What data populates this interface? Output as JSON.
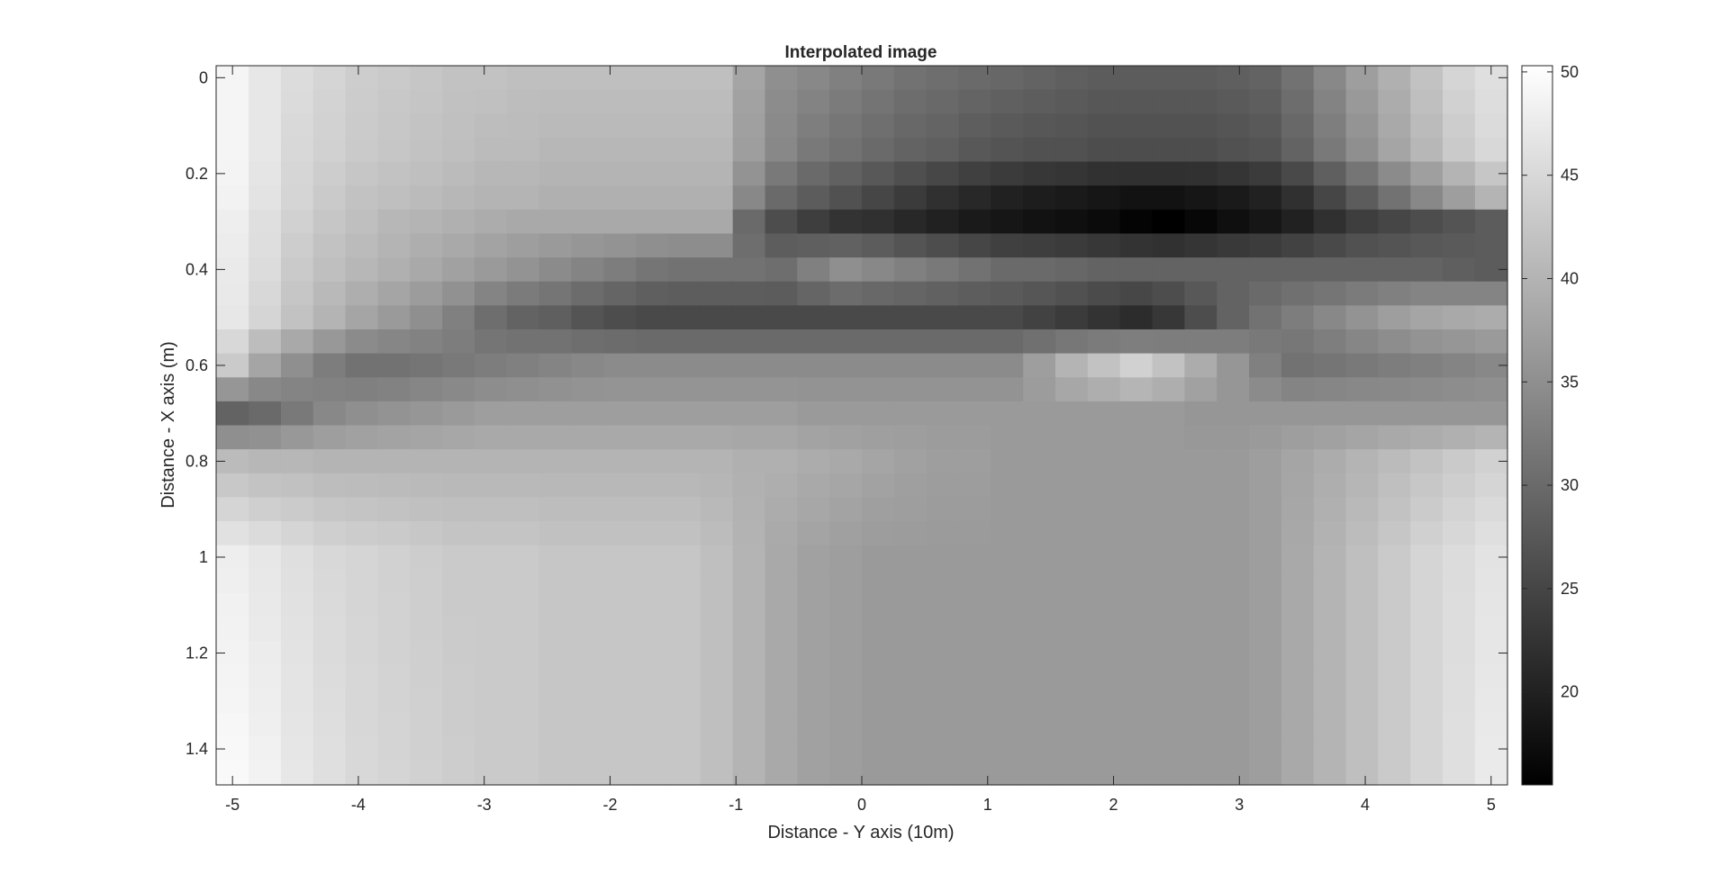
{
  "chart_data": {
    "type": "heatmap",
    "title": "Interpolated image",
    "xlabel": "Distance - Y axis (10m)",
    "ylabel": "Distance - X axis (m)",
    "xlim": [
      -5.13,
      5.13
    ],
    "ylim": [
      -0.025,
      1.475
    ],
    "x_ticks": [
      -5,
      -4,
      -3,
      -2,
      -1,
      0,
      1,
      2,
      3,
      4,
      5
    ],
    "x_tick_labels": [
      "-5",
      "-4",
      "-3",
      "-2",
      "-1",
      "0",
      "1",
      "2",
      "3",
      "4",
      "5"
    ],
    "y_ticks": [
      0,
      0.2,
      0.4,
      0.6,
      0.8,
      1,
      1.2,
      1.4
    ],
    "y_tick_labels": [
      "0",
      "0.2",
      "0.4",
      "0.6",
      "0.8",
      "1",
      "1.2",
      "1.4"
    ],
    "y_direction": "reversed",
    "colormap": "gray",
    "clim": [
      15.5,
      50.3
    ],
    "colorbar": {
      "position": "right",
      "ticks": [
        20,
        25,
        30,
        35,
        40,
        45,
        50
      ],
      "tick_labels": [
        "20",
        "25",
        "30",
        "35",
        "40",
        "45",
        "50"
      ]
    },
    "grid": false,
    "x_centers": [
      -5,
      -4.743,
      -4.487,
      -4.231,
      -3.974,
      -3.718,
      -3.462,
      -3.205,
      -2.949,
      -2.692,
      -2.436,
      -2.179,
      -1.923,
      -1.667,
      -1.41,
      -1.154,
      -0.897,
      -0.641,
      -0.385,
      -0.128,
      0.128,
      0.385,
      0.641,
      0.897,
      1.154,
      1.41,
      1.667,
      1.923,
      2.179,
      2.436,
      2.692,
      2.949,
      3.205,
      3.462,
      3.718,
      3.974,
      4.231,
      4.487,
      4.743,
      5
    ],
    "y_centers": [
      0,
      0.05,
      0.1,
      0.15,
      0.2,
      0.25,
      0.3,
      0.35,
      0.4,
      0.45,
      0.5,
      0.55,
      0.6,
      0.65,
      0.7,
      0.75,
      0.8,
      0.85,
      0.9,
      0.95,
      1,
      1.05,
      1.1,
      1.15,
      1.2,
      1.25,
      1.3,
      1.35,
      1.4,
      1.45
    ],
    "anchor_rows": [
      {
        "y": 0.0,
        "values": [
          49,
          47,
          45.5,
          44.5,
          43.5,
          43,
          42.5,
          42,
          42,
          41.5,
          41.5,
          41.5,
          41.5,
          41.5,
          41.5,
          41.5,
          38,
          35,
          34,
          33,
          32,
          31,
          30.5,
          30,
          29.5,
          29,
          28.5,
          28,
          28,
          28,
          28,
          28.5,
          29,
          31,
          34,
          37,
          39.5,
          42,
          44.5,
          46
        ]
      },
      {
        "y": 0.15,
        "values": [
          49,
          47,
          45,
          44,
          43,
          42.5,
          42,
          41.5,
          41,
          41,
          40.5,
          40.5,
          40.5,
          40.5,
          40.5,
          40.5,
          37,
          34,
          32,
          31,
          30,
          29,
          28.5,
          27.5,
          27,
          26.5,
          26.5,
          26,
          26,
          26,
          26,
          26.5,
          27,
          29,
          32,
          35,
          38,
          40.5,
          43,
          45
        ]
      },
      {
        "y": 0.25,
        "values": [
          48.5,
          46.5,
          44.5,
          43,
          42,
          41.5,
          41,
          40.5,
          40,
          40,
          39.5,
          39.5,
          39.5,
          39.5,
          39.5,
          39.5,
          34,
          30,
          28,
          26.5,
          25,
          23.5,
          22,
          21,
          20,
          19.5,
          19,
          18.5,
          18,
          18,
          18.5,
          19,
          20,
          22,
          25,
          28,
          31,
          34,
          37,
          40
        ]
      },
      {
        "y": 0.3,
        "values": [
          48,
          46,
          44,
          42.5,
          41.5,
          40.5,
          40,
          39.5,
          39,
          38.5,
          38.5,
          38.5,
          38.5,
          38.5,
          38.5,
          38.5,
          30,
          26,
          24,
          22.5,
          22,
          21,
          20,
          19,
          18.5,
          18,
          17.5,
          17,
          16,
          15.5,
          16.5,
          17.5,
          18.5,
          20,
          22,
          24,
          25,
          26,
          27,
          28
        ]
      },
      {
        "y": 0.4,
        "values": [
          47.5,
          45.5,
          43,
          41.5,
          40.5,
          39.5,
          38.5,
          37.5,
          36.5,
          35.5,
          34.5,
          33.5,
          32.5,
          31.5,
          31,
          31,
          31,
          30.5,
          33,
          35,
          34,
          33,
          32,
          31,
          30,
          30,
          29.5,
          29,
          29,
          29,
          29,
          29,
          29,
          29,
          29,
          29,
          29,
          29,
          28.5,
          28
        ]
      },
      {
        "y": 0.5,
        "values": [
          47,
          44.5,
          42,
          40,
          38,
          36.5,
          35,
          33,
          30.5,
          29,
          28.5,
          27,
          26,
          25.5,
          25.5,
          25.5,
          25.5,
          25.5,
          25.5,
          25.5,
          25.5,
          25.5,
          25.5,
          25.5,
          25.5,
          24.5,
          23.5,
          22.5,
          21.5,
          23,
          26,
          29,
          31,
          32.5,
          34,
          35.5,
          37,
          38,
          38.5,
          39
        ]
      },
      {
        "y": 0.6,
        "values": [
          43,
          38,
          35,
          32.5,
          31,
          31,
          31.5,
          32,
          32.5,
          33,
          33.5,
          34,
          34.5,
          34.5,
          34.5,
          34.5,
          34.5,
          34.5,
          34.5,
          34.5,
          34.5,
          34.5,
          34.5,
          34.5,
          34.5,
          37,
          40,
          42,
          44,
          42,
          39,
          36,
          33,
          31,
          31.5,
          32,
          32.5,
          33,
          33.5,
          34
        ]
      },
      {
        "y": 0.7,
        "values": [
          29,
          30,
          32,
          34,
          35,
          35.5,
          36,
          36.5,
          37,
          37,
          37,
          37,
          37,
          37,
          37,
          37,
          37,
          37,
          36.5,
          36.5,
          36.5,
          36.5,
          36.5,
          36.5,
          36.5,
          36.5,
          36.5,
          36.5,
          36.5,
          36.5,
          36,
          36,
          36,
          36,
          36,
          36,
          36,
          36,
          36,
          36
        ]
      },
      {
        "y": 0.8,
        "values": [
          41,
          40.5,
          40.5,
          40,
          40,
          40,
          40,
          40,
          40,
          40,
          40,
          40,
          40,
          40,
          40,
          40,
          39.5,
          39.5,
          39,
          38.5,
          38,
          37.5,
          37,
          37,
          36.5,
          36.5,
          36.5,
          36.5,
          36.5,
          36.5,
          36.5,
          36.5,
          37,
          38,
          39,
          40,
          41,
          42,
          43,
          44
        ]
      },
      {
        "y": 1.0,
        "values": [
          48,
          47,
          46,
          45,
          44.5,
          44,
          43.5,
          43,
          43,
          43,
          42.5,
          42.5,
          42.5,
          42.5,
          42.5,
          41.5,
          40,
          38.5,
          37.5,
          37,
          36.5,
          36.5,
          36.5,
          36.5,
          36.5,
          36.5,
          36.5,
          36.5,
          36.5,
          36.5,
          36.5,
          36.5,
          37,
          38.5,
          40,
          41.5,
          43,
          44.5,
          45.5,
          46.5
        ]
      },
      {
        "y": 1.45,
        "values": [
          49.5,
          48.5,
          47,
          46,
          45,
          44.5,
          44,
          43.5,
          43,
          43,
          42.5,
          42.5,
          42.5,
          42.5,
          42.5,
          41.5,
          40,
          38.5,
          37.5,
          37,
          36.5,
          36.5,
          36.5,
          36.5,
          36.5,
          36.5,
          36.5,
          36.5,
          36.5,
          36.5,
          36.5,
          36.5,
          37,
          38.5,
          40,
          41.5,
          43,
          44.5,
          46,
          47.5
        ]
      }
    ]
  }
}
